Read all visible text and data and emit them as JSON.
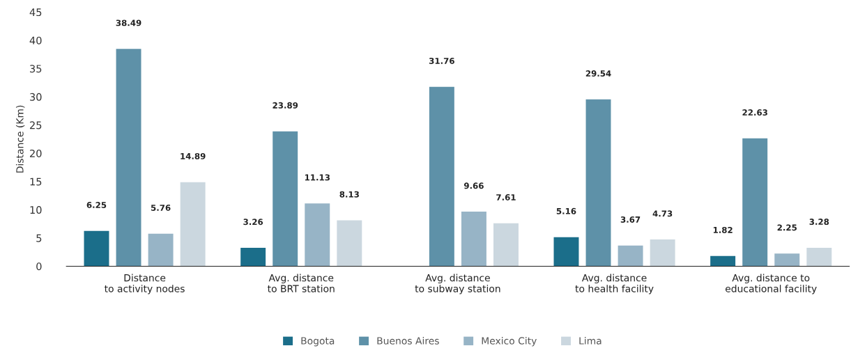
{
  "chart_data": {
    "type": "bar",
    "ylabel": "Distance (Km)",
    "categories": [
      "Distance\nto activity nodes",
      "Avg. distance\nto BRT station",
      "Avg. distance\nto subway station",
      "Avg. distance\nto health facility",
      "Avg. distance to\neducational facility"
    ],
    "series": [
      {
        "name": "Bogota",
        "color": "#1b6e8a",
        "values": [
          6.25,
          3.26,
          null,
          5.16,
          1.82
        ]
      },
      {
        "name": "Buenos Aires",
        "color": "#5e91a8",
        "values": [
          38.49,
          23.89,
          31.76,
          29.54,
          22.63
        ]
      },
      {
        "name": "Mexico City",
        "color": "#97b4c6",
        "values": [
          5.76,
          11.13,
          9.66,
          3.67,
          2.25
        ]
      },
      {
        "name": "Lima",
        "color": "#cbd7df",
        "values": [
          14.89,
          8.13,
          7.61,
          4.73,
          3.28
        ]
      }
    ],
    "ylim": [
      0,
      45
    ],
    "yticks": [
      0,
      5,
      10,
      15,
      20,
      25,
      30,
      35,
      40,
      45
    ],
    "grid": false,
    "legend": "bottom",
    "data_labels": true
  }
}
